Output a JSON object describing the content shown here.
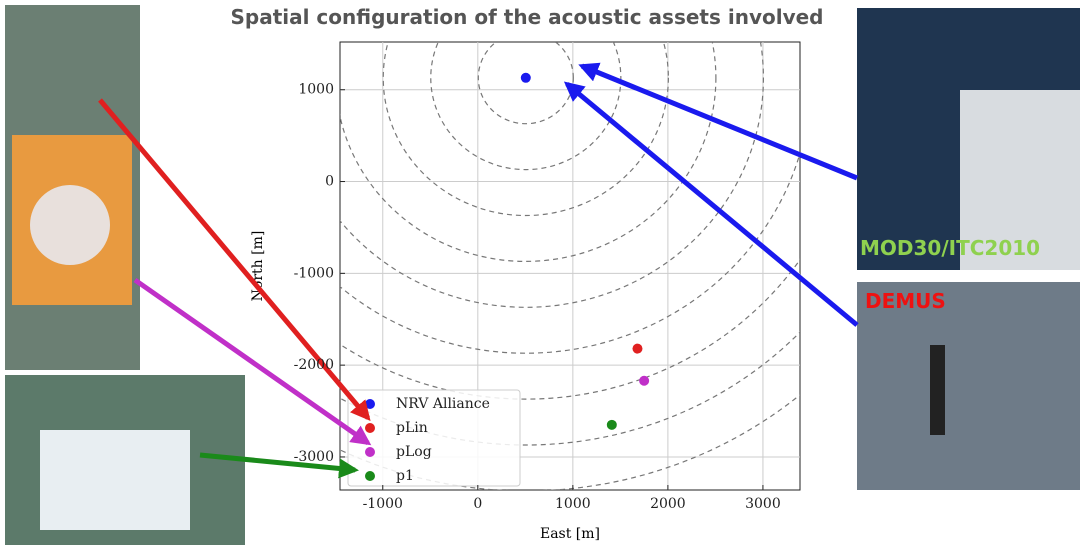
{
  "chart_data": {
    "type": "scatter",
    "title": "Spatial configuration of the acoustic assets involved",
    "x_label": "East [m]",
    "y_label": "North [m]",
    "xlim": [
      -1450,
      3390
    ],
    "ylim": [
      -3360,
      1520
    ],
    "xticks": [
      -1000,
      0,
      1000,
      2000,
      3000
    ],
    "yticks": [
      -3000,
      -2000,
      -1000,
      0,
      1000
    ],
    "grid": true,
    "legend": "lower left",
    "range_rings": [
      500,
      1000,
      1500,
      2000,
      2500,
      3000,
      3500,
      4000,
      4500
    ],
    "series": [
      {
        "name": "NRV Alliance",
        "color": "#1a1aee",
        "x": [
          505
        ],
        "values": [
          1130
        ]
      },
      {
        "name": "pLin",
        "color": "#e02020",
        "x": [
          1680
        ],
        "values": [
          -1820
        ]
      },
      {
        "name": "pLog",
        "color": "#c030c8",
        "x": [
          1750
        ],
        "values": [
          -2170
        ]
      },
      {
        "name": "p1",
        "color": "#1a8a1a",
        "x": [
          1410
        ],
        "values": [
          -2650
        ]
      }
    ],
    "annotations": [
      "MOD30/ITC2010",
      "DEMUS"
    ]
  }
}
